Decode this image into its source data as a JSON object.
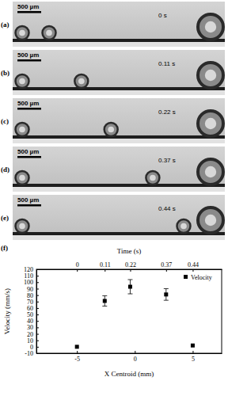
{
  "panels": [
    {
      "label": "(a)",
      "time": "0 s",
      "scale_bar": "500 µm"
    },
    {
      "label": "(b)",
      "time": "0.11 s",
      "scale_bar": "500 µm"
    },
    {
      "label": "(c)",
      "time": "0.22 s",
      "scale_bar": "500 µm"
    },
    {
      "label": "(d)",
      "time": "0.37 s",
      "scale_bar": "500 µm"
    },
    {
      "label": "(e)",
      "time": "0.44 s",
      "scale_bar": "500 µm"
    }
  ],
  "chart_data": {
    "type": "scatter",
    "label": "(f)",
    "xlabel": "X Centroid (mm)",
    "ylabel": "Velocity (mm/s)",
    "x2label": "Time (s)",
    "x": [
      -5,
      -2.6,
      -0.4,
      2.7,
      5
    ],
    "series": [
      {
        "name": "Velocity",
        "color": "#000000",
        "marker": "square",
        "values": [
          0,
          71,
          93,
          81,
          2
        ],
        "errors": [
          0,
          8,
          11,
          9,
          0
        ]
      }
    ],
    "xlim": [
      -8.5,
      7.5
    ],
    "xticks": [
      -5,
      0,
      5
    ],
    "x2lim": [
      -8.5,
      7.5
    ],
    "x2ticks": [
      {
        "value": -5,
        "label": "0"
      },
      {
        "value": -2.6,
        "label": "0.11"
      },
      {
        "value": -0.4,
        "label": "0.22"
      },
      {
        "value": 2.7,
        "label": "0.37"
      },
      {
        "value": 5,
        "label": "0.44"
      }
    ],
    "ylim": [
      -10,
      120
    ],
    "yticks": [
      -10,
      0,
      10,
      20,
      30,
      40,
      50,
      60,
      70,
      80,
      90,
      100,
      110,
      120
    ],
    "legend": "top-right",
    "grid": false
  }
}
